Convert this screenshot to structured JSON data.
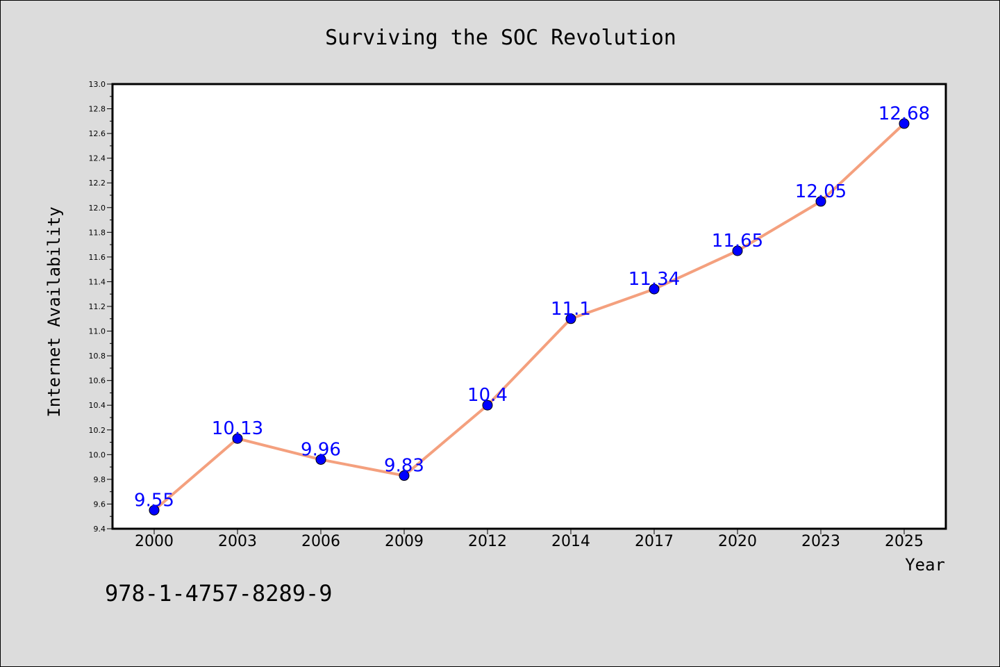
{
  "chart_data": {
    "type": "line",
    "title": "Surviving the SOC Revolution",
    "xlabel": "Year",
    "ylabel": "Internet Availability",
    "categories": [
      "2000",
      "2003",
      "2006",
      "2009",
      "2012",
      "2014",
      "2017",
      "2020",
      "2023",
      "2025"
    ],
    "series": [
      {
        "values": [
          9.55,
          10.13,
          9.96,
          9.83,
          10.4,
          11.1,
          11.34,
          11.65,
          12.05,
          12.68
        ],
        "labels": [
          "9.55",
          "10.13",
          "9.96",
          "9.83",
          "10.4",
          "11.1",
          "11.34",
          "11.65",
          "12.05",
          "12.68"
        ],
        "line_color": "#f4a07e",
        "marker_color": "#0000ff"
      }
    ],
    "ylim": [
      9.4,
      13.0
    ],
    "yticks": [
      "9.4",
      "9.6",
      "9.8",
      "10.0",
      "10.2",
      "10.4",
      "10.6",
      "10.8",
      "11.0",
      "11.2",
      "11.4",
      "11.6",
      "11.8",
      "12.0",
      "12.2",
      "12.4",
      "12.6",
      "12.8",
      "13.0"
    ],
    "grid": false,
    "data_label_color": "#0000ff"
  },
  "annotation": {
    "isbn": "978-1-4757-8289-9"
  },
  "colors": {
    "background": "#dcdcdc",
    "plot_background": "#ffffff"
  }
}
